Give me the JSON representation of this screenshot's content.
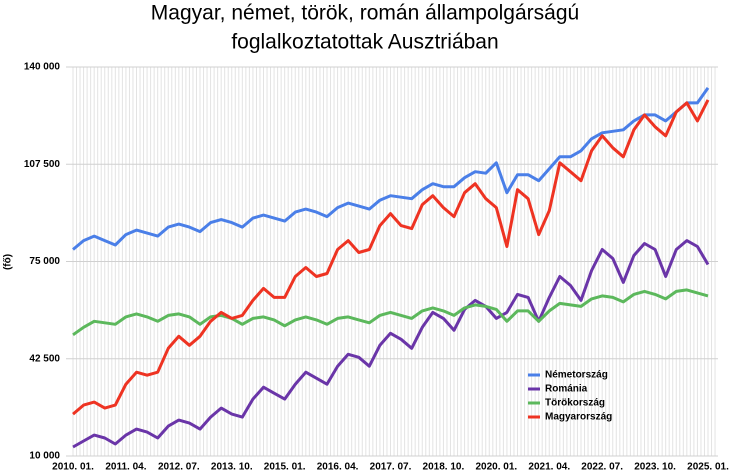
{
  "chart_data": {
    "type": "line",
    "title": [
      "Magyar, német, török, román állampolgárságú",
      "foglalkoztatottak Ausztriában"
    ],
    "y_label": "(fő)",
    "categories": [
      "2010. 01.",
      null,
      null,
      null,
      null,
      "2011. 04.",
      null,
      null,
      null,
      null,
      "2012. 07.",
      null,
      null,
      null,
      null,
      "2013. 10.",
      null,
      null,
      null,
      null,
      "2015. 01.",
      null,
      null,
      null,
      null,
      "2016. 04.",
      null,
      null,
      null,
      null,
      "2017. 07.",
      null,
      null,
      null,
      null,
      "2018. 10.",
      null,
      null,
      null,
      null,
      "2020. 01.",
      null,
      null,
      null,
      null,
      "2021. 04.",
      null,
      null,
      null,
      null,
      "2022. 07.",
      null,
      null,
      null,
      null,
      "2023. 10.",
      null,
      null,
      null,
      null,
      "2025. 01."
    ],
    "series": [
      {
        "name": "Németország",
        "color": "#4a7fe8",
        "values": [
          79000,
          82000,
          83500,
          82000,
          80500,
          84000,
          85500,
          84500,
          83500,
          86500,
          87500,
          86500,
          85000,
          88000,
          89000,
          88000,
          86500,
          89500,
          90500,
          89500,
          88500,
          91500,
          92500,
          91500,
          90000,
          93000,
          94500,
          93500,
          92500,
          95500,
          97000,
          96500,
          96000,
          99000,
          101000,
          100000,
          100000,
          103000,
          105000,
          104500,
          108000,
          98000,
          104000,
          104000,
          102000,
          106000,
          110000,
          110000,
          112000,
          116000,
          118000,
          118500,
          119000,
          122000,
          124000,
          124000,
          122000,
          125000,
          128000,
          128000,
          133000
        ]
      },
      {
        "name": "Románia",
        "color": "#6a35a8",
        "values": [
          13000,
          15000,
          17000,
          16000,
          14000,
          17000,
          19000,
          18000,
          16000,
          20000,
          22000,
          21000,
          19000,
          23000,
          26000,
          24000,
          23000,
          29000,
          33000,
          31000,
          29000,
          34000,
          38000,
          36000,
          34000,
          40000,
          44000,
          43000,
          40000,
          47000,
          51000,
          49000,
          46000,
          53000,
          58000,
          56000,
          52000,
          59000,
          62000,
          60000,
          56000,
          58000,
          64000,
          63000,
          55000,
          63000,
          70000,
          67000,
          62000,
          72000,
          79000,
          76000,
          68000,
          77000,
          81000,
          79000,
          70000,
          79000,
          82000,
          80000,
          74000
        ]
      },
      {
        "name": "Törökország",
        "color": "#5cb85c",
        "values": [
          50500,
          53000,
          55000,
          54500,
          54000,
          56500,
          57500,
          56500,
          55000,
          57000,
          57500,
          56500,
          54000,
          56500,
          57000,
          56000,
          54000,
          56000,
          56500,
          55500,
          53500,
          55500,
          56500,
          55500,
          54000,
          56000,
          56500,
          55500,
          54500,
          57000,
          58000,
          57000,
          56000,
          58500,
          59500,
          58500,
          57000,
          59500,
          60500,
          60000,
          59000,
          55000,
          58500,
          58500,
          55000,
          58500,
          61000,
          60500,
          60000,
          62500,
          63500,
          63000,
          61500,
          64000,
          65000,
          64000,
          62500,
          65000,
          65500,
          64500,
          63500
        ]
      },
      {
        "name": "Magyarország",
        "color": "#ee3322",
        "values": [
          24000,
          27000,
          28000,
          26000,
          27000,
          34000,
          38000,
          37000,
          38000,
          46000,
          50000,
          47000,
          50000,
          55000,
          58000,
          56000,
          57000,
          62000,
          66000,
          63000,
          63000,
          70000,
          73000,
          70000,
          71000,
          79000,
          82000,
          78000,
          79000,
          87000,
          91000,
          87000,
          86000,
          94000,
          97000,
          93000,
          90000,
          98000,
          101000,
          96000,
          93000,
          80000,
          99000,
          96000,
          84000,
          92000,
          108000,
          105000,
          102000,
          112000,
          117000,
          113000,
          110000,
          119000,
          124000,
          120000,
          117000,
          125000,
          128000,
          122000,
          129000
        ]
      }
    ],
    "ylim": [
      10000,
      140000
    ],
    "yticks": [
      {
        "value": 10000,
        "label": "10 000"
      },
      {
        "value": 42500,
        "label": "42 500"
      },
      {
        "value": 75000,
        "label": "75 000"
      },
      {
        "value": 107500,
        "label": "107 500"
      },
      {
        "value": 140000,
        "label": "140 000"
      }
    ],
    "grid": true
  }
}
